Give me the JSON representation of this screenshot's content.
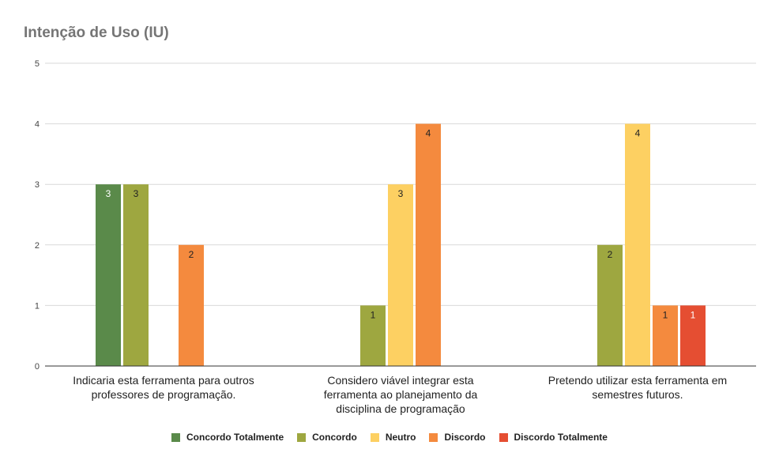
{
  "chart_data": {
    "type": "bar",
    "title": "Intenção de Uso (IU)",
    "categories": [
      [
        "Indicaria esta ferramenta para outros",
        "professores de programação."
      ],
      [
        "Considero viável integrar esta",
        "ferramenta ao planejamento da",
        "disciplina de programação"
      ],
      [
        "Pretendo utilizar esta ferramenta em",
        "semestres futuros."
      ]
    ],
    "series": [
      {
        "name": "Concordo Totalmente",
        "color": "#5a8a4a",
        "label_color": "#ffffff",
        "values": [
          3,
          0,
          0
        ]
      },
      {
        "name": "Concordo",
        "color": "#9ea740",
        "label_color": "#222222",
        "values": [
          3,
          1,
          2
        ]
      },
      {
        "name": "Neutro",
        "color": "#fdd062",
        "label_color": "#222222",
        "values": [
          0,
          3,
          4
        ]
      },
      {
        "name": "Discordo",
        "color": "#f48a3e",
        "label_color": "#222222",
        "values": [
          2,
          4,
          1
        ]
      },
      {
        "name": "Discordo Totalmente",
        "color": "#e54e32",
        "label_color": "#ffffff",
        "values": [
          0,
          0,
          1
        ]
      }
    ],
    "ylim": [
      0,
      5
    ],
    "yticks": [
      0,
      1,
      2,
      3,
      4,
      5
    ],
    "grid": true,
    "legend_position": "bottom"
  }
}
